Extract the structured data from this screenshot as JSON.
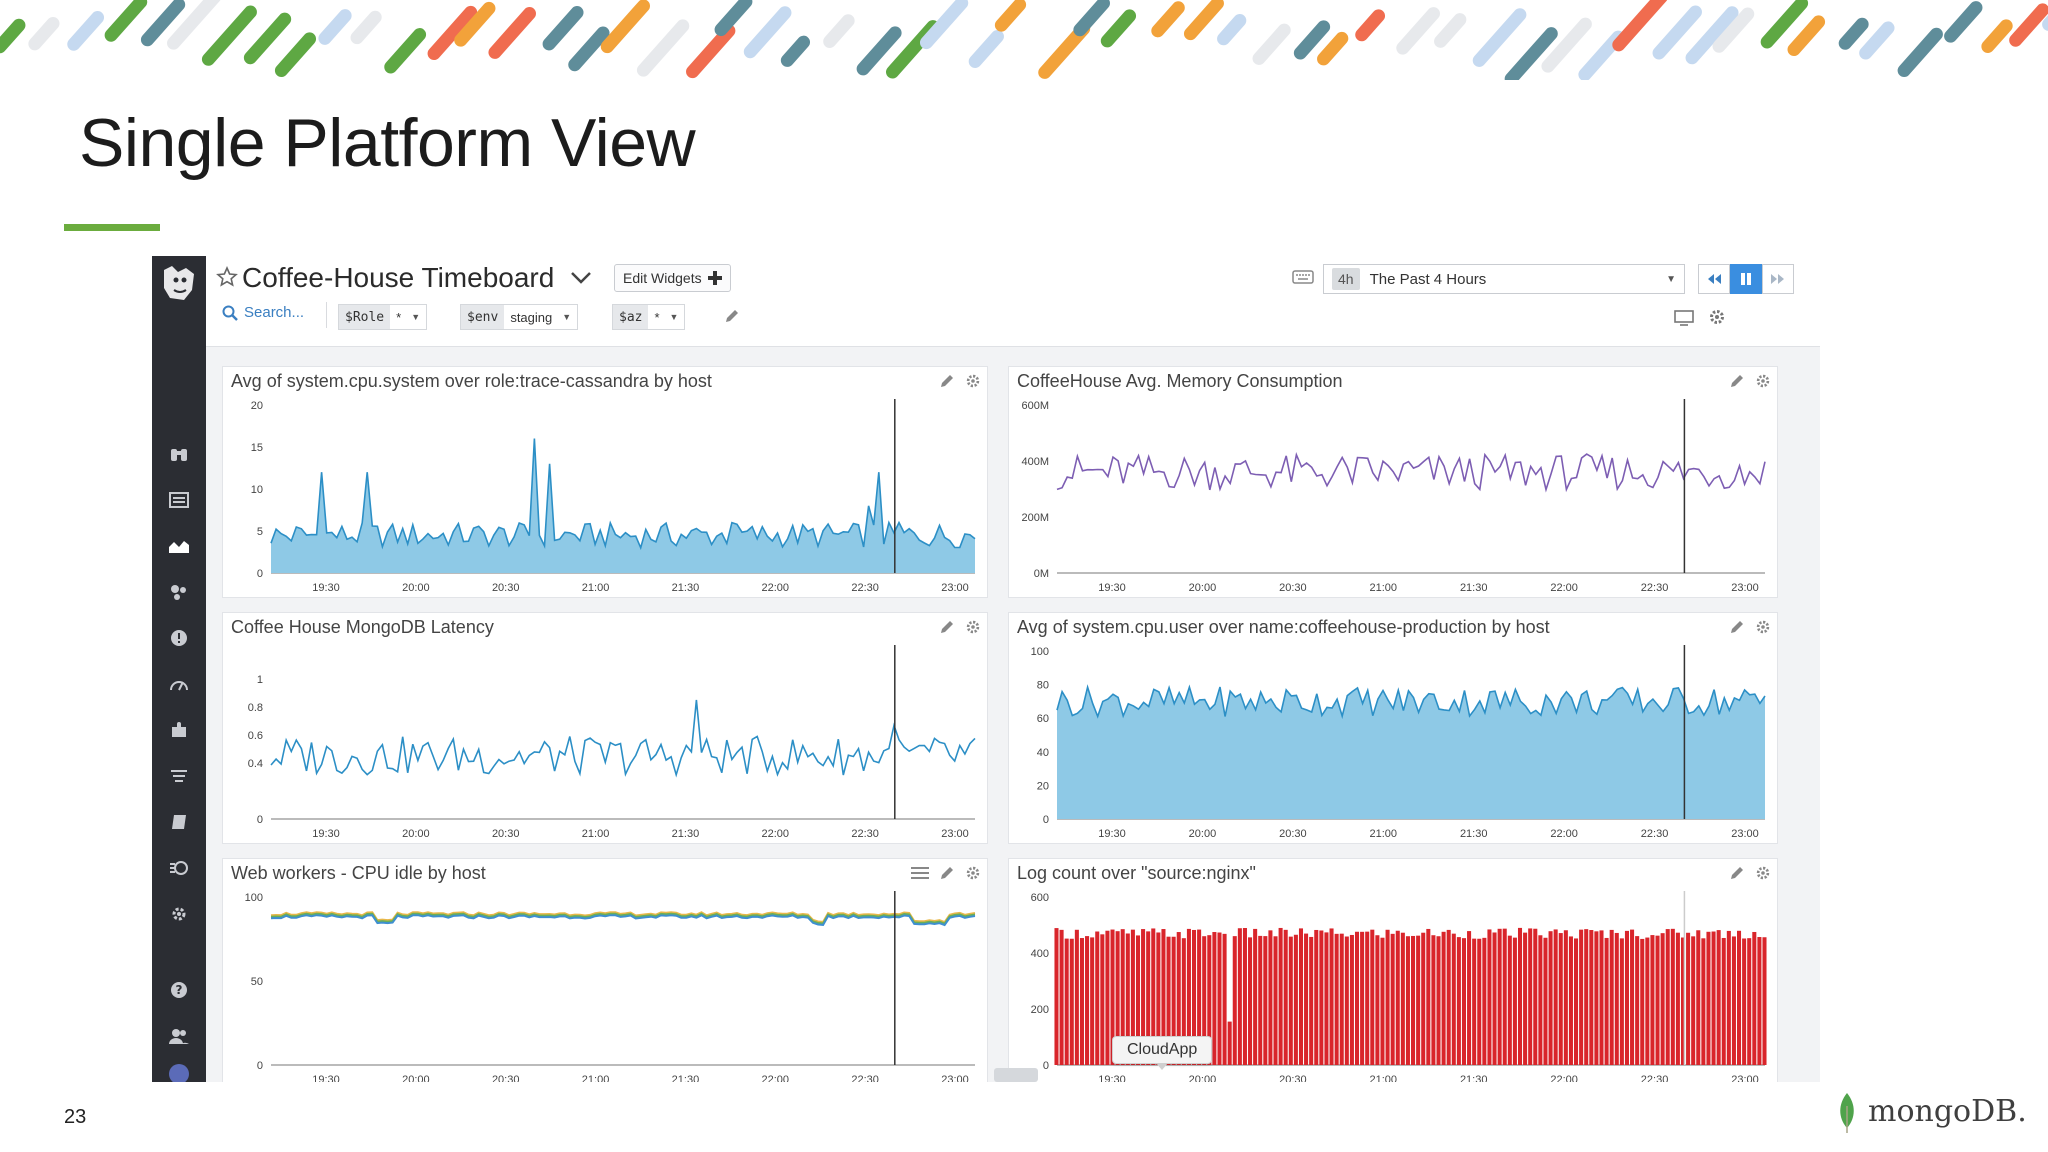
{
  "slide": {
    "title": "Single Platform View",
    "number": "23",
    "logo_text": "mongoDB.",
    "accent_color": "#6bac3e"
  },
  "app": {
    "board_title": "Coffee-House Timeboard",
    "edit_widgets_label": "Edit Widgets",
    "search_placeholder": "Search...",
    "template_vars": [
      {
        "key": "$Role",
        "value": "*"
      },
      {
        "key": "$env",
        "value": "staging"
      },
      {
        "key": "$az",
        "value": "*"
      }
    ],
    "time_badge": "4h",
    "time_range": "The Past 4 Hours",
    "tooltip": "CloudApp"
  },
  "sidebar_icons": [
    "dog-logo-icon",
    "binoculars-icon",
    "list-icon",
    "dashboard-chart-icon",
    "infrastructure-icon",
    "monitors-alert-icon",
    "apm-gauge-icon",
    "integrations-puzzle-icon",
    "logs-icon",
    "notebooks-icon",
    "synthetics-icon",
    "settings-icon",
    "help-icon",
    "team-icon",
    "profile-icon"
  ],
  "x_ticks": [
    "19:30",
    "20:00",
    "20:30",
    "21:00",
    "21:30",
    "22:00",
    "22:30",
    "23:00"
  ],
  "widgets": [
    {
      "title": "Avg of system.cpu.system over role:trace-cassandra by host",
      "tools": [
        "pencil-icon",
        "gear-icon"
      ]
    },
    {
      "title": "CoffeeHouse Avg. Memory Consumption",
      "tools": [
        "pencil-icon",
        "gear-icon"
      ]
    },
    {
      "title": "Coffee House MongoDB Latency",
      "tools": [
        "pencil-icon",
        "gear-icon"
      ]
    },
    {
      "title": "Avg of system.cpu.user over name:coffeehouse-production by host",
      "tools": [
        "pencil-icon",
        "gear-icon"
      ]
    },
    {
      "title": "Web workers - CPU idle by host",
      "tools": [
        "list-icon",
        "pencil-icon",
        "gear-icon"
      ]
    },
    {
      "title": "Log count over \"source:nginx\"",
      "tools": [
        "pencil-icon",
        "gear-icon"
      ]
    }
  ],
  "chart_data": [
    {
      "type": "area",
      "title": "Avg of system.cpu.system over role:trace-cassandra by host",
      "ylim": [
        0,
        20
      ],
      "y_ticks": [
        "0",
        "5",
        "10",
        "15",
        "20"
      ],
      "x_ticks": [
        "19:30",
        "20:00",
        "20:30",
        "21:00",
        "21:30",
        "22:00",
        "22:30",
        "23:00"
      ],
      "color": "#2c8fc6",
      "fill": "#8ec9e6",
      "spikes": [
        12,
        12,
        16,
        13,
        6,
        8,
        6,
        12
      ],
      "baseline": 3,
      "marker_x": "22:40"
    },
    {
      "type": "line",
      "title": "CoffeeHouse Avg. Memory Consumption",
      "ylim": [
        0,
        600
      ],
      "y_ticks": [
        "0M",
        "200M",
        "400M",
        "600M"
      ],
      "x_ticks": [
        "19:30",
        "20:00",
        "20:30",
        "21:00",
        "21:30",
        "22:00",
        "22:30",
        "23:00"
      ],
      "color": "#7d5eb3",
      "baseline": 360,
      "marker_x": "22:40"
    },
    {
      "type": "line",
      "title": "Coffee House MongoDB Latency",
      "ylim": [
        0,
        1.2
      ],
      "y_ticks": [
        "0",
        "0.4",
        "0.6",
        "0.8",
        "1"
      ],
      "x_ticks": [
        "19:30",
        "20:00",
        "20:30",
        "21:00",
        "21:30",
        "22:00",
        "22:30",
        "23:00"
      ],
      "color": "#2c8fc6",
      "baseline": 0.45,
      "marker_x": "22:40"
    },
    {
      "type": "area",
      "title": "Avg of system.cpu.user over name:coffeehouse-production by host",
      "ylim": [
        0,
        100
      ],
      "y_ticks": [
        "0",
        "20",
        "40",
        "60",
        "80",
        "100"
      ],
      "x_ticks": [
        "19:30",
        "20:00",
        "20:30",
        "21:00",
        "21:30",
        "22:00",
        "22:30",
        "23:00"
      ],
      "color": "#2c8fc6",
      "fill": "#8ec9e6",
      "baseline": 70,
      "marker_x": "22:40"
    },
    {
      "type": "line",
      "title": "Web workers - CPU idle by host",
      "ylim": [
        0,
        100
      ],
      "y_ticks": [
        "0",
        "50",
        "100"
      ],
      "x_ticks": [
        "19:30",
        "20:00",
        "20:30",
        "21:00",
        "21:30",
        "22:00",
        "22:30",
        "23:00"
      ],
      "series_colors": [
        "#e8b84a",
        "#6aaf58",
        "#3e8fd0"
      ],
      "baseline": 90,
      "marker_x": "22:40"
    },
    {
      "type": "bar",
      "title": "Log count over \"source:nginx\"",
      "ylim": [
        0,
        600
      ],
      "y_ticks": [
        "0",
        "200",
        "400",
        "600"
      ],
      "x_ticks": [
        "19:30",
        "20:00",
        "20:30",
        "21:00",
        "21:30",
        "22:00",
        "22:30",
        "23:00"
      ],
      "color": "#d9252b",
      "baseline": 470,
      "marker_x": "22:40"
    }
  ]
}
